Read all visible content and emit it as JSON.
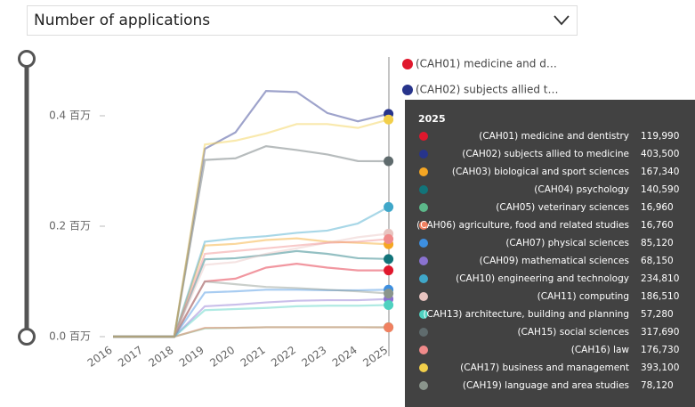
{
  "chart_data": {
    "type": "line",
    "title": "Number of applications",
    "categories": [
      "2016",
      "2017",
      "2018",
      "2019",
      "2020",
      "2021",
      "2022",
      "2023",
      "2024",
      "2025"
    ],
    "ylim": [
      0,
      0.5
    ],
    "yticks": [
      {
        "value": 0,
        "label": "0.0 百万"
      },
      {
        "value": 0.2,
        "label": "0.2 百万"
      },
      {
        "value": 0.4,
        "label": "0.4 百万"
      }
    ],
    "legend": [
      "(CAH01) medicine and d…",
      "(CAH02) subjects allied t…"
    ],
    "series": [
      {
        "name": "(CAH01) medicine and dentistry",
        "color": "#e0182d",
        "values": [
          0,
          0,
          0,
          0.1,
          0.105,
          0.125,
          0.132,
          0.125,
          0.12,
          0.11999
        ],
        "value_labels": [
          null,
          null,
          null,
          null,
          null,
          null,
          null,
          null,
          null,
          "119,990"
        ]
      },
      {
        "name": "(CAH02) subjects allied to medicine",
        "color": "#27348b",
        "values": [
          0,
          0,
          0,
          0.34,
          0.37,
          0.445,
          0.443,
          0.405,
          0.39,
          0.4035
        ],
        "value_labels": [
          null,
          null,
          null,
          null,
          null,
          null,
          null,
          null,
          null,
          "403,500"
        ]
      },
      {
        "name": "(CAH03) biological and sport sciences",
        "color": "#f5a623",
        "values": [
          0,
          0,
          0,
          0.165,
          0.168,
          0.175,
          0.178,
          0.172,
          0.17,
          0.16734
        ],
        "value_labels": [
          null,
          null,
          null,
          null,
          null,
          null,
          null,
          null,
          null,
          "167,340"
        ]
      },
      {
        "name": "(CAH04) psychology",
        "color": "#12747a",
        "values": [
          0,
          0,
          0,
          0.14,
          0.142,
          0.148,
          0.155,
          0.15,
          0.142,
          0.14059
        ],
        "value_labels": [
          null,
          null,
          null,
          null,
          null,
          null,
          null,
          null,
          null,
          "140,590"
        ]
      },
      {
        "name": "(CAH05) veterinary sciences",
        "color": "#5cb88a",
        "values": [
          0,
          0,
          0,
          0.015,
          0.016,
          0.017,
          0.017,
          0.017,
          0.017,
          0.01696
        ],
        "value_labels": [
          null,
          null,
          null,
          null,
          null,
          null,
          null,
          null,
          null,
          "16,960"
        ]
      },
      {
        "name": "(CAH06) agriculture, food and related studies",
        "color": "#f08060",
        "values": [
          0,
          0,
          0,
          0.016,
          0.016,
          0.017,
          0.017,
          0.017,
          0.017,
          0.01676
        ],
        "value_labels": [
          null,
          null,
          null,
          null,
          null,
          null,
          null,
          null,
          null,
          "16,760"
        ]
      },
      {
        "name": "(CAH07) physical sciences",
        "color": "#3d8fe0",
        "values": [
          0,
          0,
          0,
          0.08,
          0.082,
          0.085,
          0.085,
          0.084,
          0.084,
          0.08512
        ],
        "value_labels": [
          null,
          null,
          null,
          null,
          null,
          null,
          null,
          null,
          null,
          "85,120"
        ]
      },
      {
        "name": "(CAH09) mathematical sciences",
        "color": "#8a72d0",
        "values": [
          0,
          0,
          0,
          0.055,
          0.058,
          0.062,
          0.065,
          0.066,
          0.066,
          0.06815
        ],
        "value_labels": [
          null,
          null,
          null,
          null,
          null,
          null,
          null,
          null,
          null,
          "68,150"
        ]
      },
      {
        "name": "(CAH10) engineering and technology",
        "color": "#3fa7c9",
        "values": [
          0,
          0,
          0,
          0.172,
          0.178,
          0.182,
          0.188,
          0.192,
          0.205,
          0.2348
        ],
        "value_labels": [
          null,
          null,
          null,
          null,
          null,
          null,
          null,
          null,
          null,
          "234,810"
        ]
      },
      {
        "name": "(CAH11) computing",
        "color": "#e8c4c0",
        "values": [
          0,
          0,
          0,
          0.13,
          0.135,
          0.15,
          0.16,
          0.17,
          0.18,
          0.18651
        ],
        "value_labels": [
          null,
          null,
          null,
          null,
          null,
          null,
          null,
          null,
          null,
          "186,510"
        ]
      },
      {
        "name": "(CAH13) architecture, building and planning",
        "color": "#4fd1c0",
        "values": [
          0,
          0,
          0,
          0.048,
          0.05,
          0.052,
          0.055,
          0.056,
          0.056,
          0.05728
        ],
        "value_labels": [
          null,
          null,
          null,
          null,
          null,
          null,
          null,
          null,
          null,
          "57,280"
        ]
      },
      {
        "name": "(CAH15) social sciences",
        "color": "#5f6b6d",
        "values": [
          0,
          0,
          0,
          0.32,
          0.323,
          0.345,
          0.338,
          0.33,
          0.318,
          0.31769
        ],
        "value_labels": [
          null,
          null,
          null,
          null,
          null,
          null,
          null,
          null,
          null,
          "317,690"
        ]
      },
      {
        "name": "(CAH16) law",
        "color": "#f08a8a",
        "values": [
          0,
          0,
          0,
          0.15,
          0.155,
          0.16,
          0.165,
          0.17,
          0.172,
          0.17673
        ],
        "value_labels": [
          null,
          null,
          null,
          null,
          null,
          null,
          null,
          null,
          null,
          "176,730"
        ]
      },
      {
        "name": "(CAH17) business and management",
        "color": "#f2cf4a",
        "values": [
          0,
          0,
          0,
          0.348,
          0.355,
          0.368,
          0.385,
          0.385,
          0.378,
          0.3931
        ],
        "value_labels": [
          null,
          null,
          null,
          null,
          null,
          null,
          null,
          null,
          null,
          "393,100"
        ]
      },
      {
        "name": "(CAH19) language and area studies",
        "color": "#8a958c",
        "values": [
          0,
          0,
          0,
          0.1,
          0.095,
          0.09,
          0.088,
          0.085,
          0.082,
          0.07812
        ],
        "value_labels": [
          null,
          null,
          null,
          null,
          null,
          null,
          null,
          null,
          null,
          "78,120"
        ]
      }
    ]
  }
}
